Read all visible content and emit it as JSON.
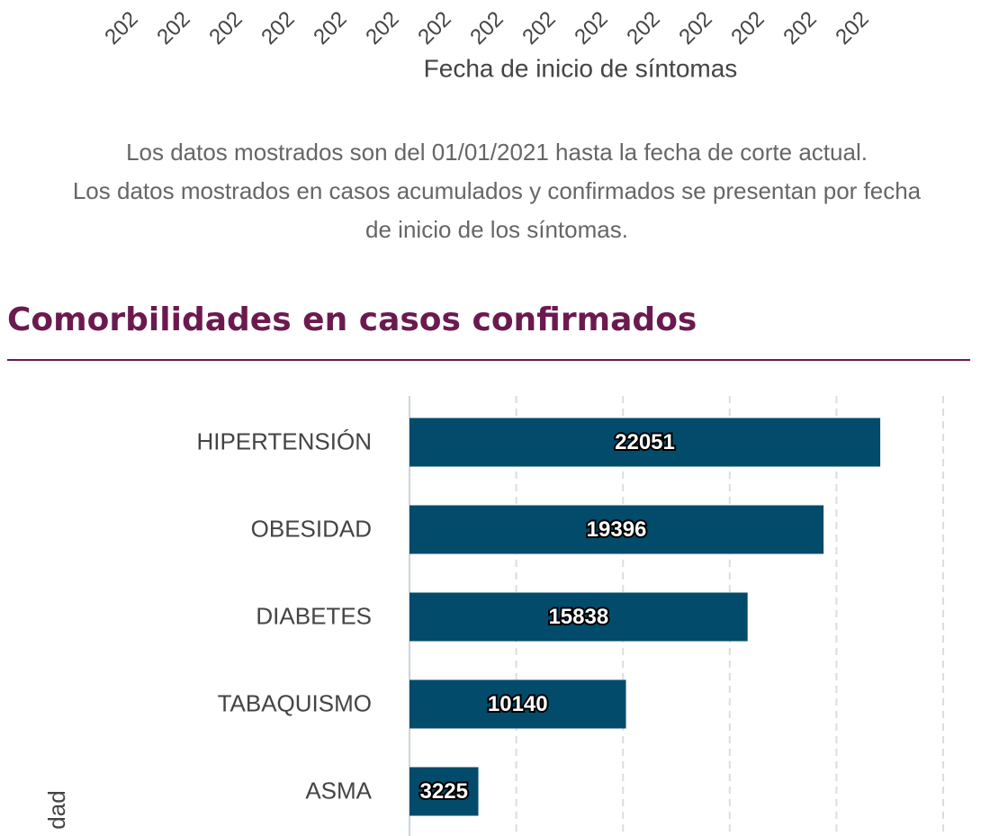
{
  "previous_chart": {
    "x_tick_fragments": [
      "202",
      "202",
      "202",
      "202",
      "202",
      "202",
      "202",
      "202",
      "202",
      "202",
      "202",
      "202",
      "202",
      "202",
      "202"
    ],
    "x_label": "Fecha de inicio de síntomas"
  },
  "note_lines": [
    "Los datos mostrados son del 01/01/2021 hasta la fecha de corte actual.",
    "Los datos mostrados en casos acumulados y confirmados se presentan por fecha",
    "de inicio de los síntomas."
  ],
  "section_title": "Comorbilidades en casos confirmados",
  "chart_data": {
    "type": "hbar",
    "y_label": "dad",
    "categories": [
      "HIPERTENSIÓN",
      "OBESIDAD",
      "DIABETES",
      "TABAQUISMO",
      "ASMA"
    ],
    "values": [
      22051,
      19396,
      15838,
      10140,
      3225
    ],
    "color": "#024b6b",
    "xlim": [
      0,
      25000
    ],
    "xticks": [
      0,
      5000,
      10000,
      15000,
      20000,
      25000
    ],
    "grid": true
  }
}
